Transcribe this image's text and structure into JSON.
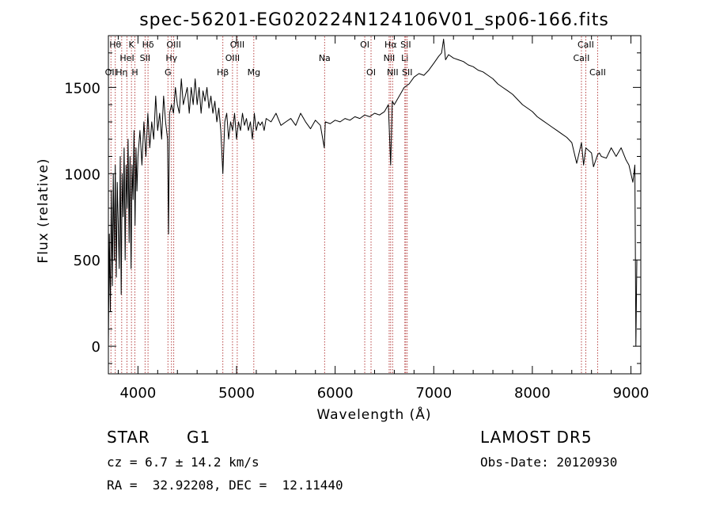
{
  "chart_data": {
    "type": "line",
    "title": "spec-56201-EG020224N124106V01_sp06-166.fits",
    "xlabel": "Wavelength (Å)",
    "ylabel": "Flux (relative)",
    "xlim": [
      3700,
      9100
    ],
    "ylim": [
      -160,
      1800
    ],
    "xticks": [
      4000,
      5000,
      6000,
      7000,
      8000,
      9000
    ],
    "yticks": [
      0,
      500,
      1000,
      1500
    ],
    "grid": false,
    "series": [
      {
        "x": [
          3700,
          3710,
          3720,
          3730,
          3740,
          3750,
          3760,
          3770,
          3780,
          3790,
          3800,
          3810,
          3820,
          3830,
          3840,
          3850,
          3860,
          3870,
          3880,
          3890,
          3900,
          3910,
          3920,
          3930,
          3940,
          3950,
          3960,
          3970,
          3980,
          3990,
          4000,
          4020,
          4040,
          4060,
          4080,
          4100,
          4120,
          4140,
          4160,
          4180,
          4200,
          4220,
          4240,
          4260,
          4280,
          4300,
          4310,
          4320,
          4340,
          4360,
          4380,
          4400,
          4420,
          4440,
          4460,
          4480,
          4500,
          4520,
          4540,
          4560,
          4580,
          4600,
          4620,
          4640,
          4660,
          4680,
          4700,
          4720,
          4740,
          4760,
          4780,
          4800,
          4820,
          4840,
          4861,
          4880,
          4900,
          4920,
          4940,
          4960,
          4980,
          5000,
          5020,
          5040,
          5060,
          5080,
          5100,
          5120,
          5140,
          5160,
          5180,
          5200,
          5220,
          5240,
          5260,
          5280,
          5300,
          5350,
          5400,
          5450,
          5500,
          5550,
          5600,
          5650,
          5700,
          5750,
          5800,
          5850,
          5890,
          5900,
          5950,
          6000,
          6050,
          6100,
          6150,
          6200,
          6250,
          6300,
          6350,
          6400,
          6450,
          6500,
          6540,
          6563,
          6580,
          6600,
          6650,
          6700,
          6750,
          6800,
          6850,
          6900,
          6950,
          7000,
          7050,
          7080,
          7100,
          7120,
          7150,
          7200,
          7250,
          7300,
          7350,
          7400,
          7450,
          7500,
          7550,
          7600,
          7650,
          7700,
          7750,
          7800,
          7850,
          7900,
          7950,
          8000,
          8050,
          8100,
          8150,
          8200,
          8250,
          8300,
          8350,
          8400,
          8450,
          8498,
          8520,
          8542,
          8560,
          8580,
          8600,
          8620,
          8662,
          8680,
          8700,
          8750,
          8800,
          8850,
          8900,
          8950,
          8980,
          9000,
          9020,
          9040,
          9050,
          9060
        ],
        "y": [
          0,
          650,
          200,
          900,
          350,
          1000,
          500,
          1050,
          400,
          950,
          700,
          450,
          1100,
          300,
          1000,
          750,
          1150,
          500,
          1050,
          800,
          1200,
          600,
          1100,
          450,
          1050,
          850,
          1250,
          700,
          1150,
          900,
          1100,
          1250,
          1050,
          1300,
          1100,
          1350,
          1150,
          1300,
          1200,
          1450,
          1250,
          1350,
          1200,
          1450,
          1300,
          1200,
          650,
          1350,
          1400,
          1350,
          1500,
          1400,
          1350,
          1550,
          1400,
          1450,
          1500,
          1350,
          1500,
          1400,
          1550,
          1400,
          1500,
          1350,
          1480,
          1420,
          1500,
          1380,
          1450,
          1350,
          1420,
          1300,
          1380,
          1250,
          1000,
          1300,
          1350,
          1200,
          1300,
          1250,
          1350,
          1200,
          1300,
          1250,
          1350,
          1280,
          1320,
          1250,
          1300,
          1200,
          1350,
          1250,
          1300,
          1280,
          1300,
          1250,
          1320,
          1300,
          1350,
          1280,
          1300,
          1320,
          1280,
          1350,
          1300,
          1260,
          1310,
          1280,
          1150,
          1300,
          1290,
          1310,
          1300,
          1320,
          1310,
          1330,
          1320,
          1340,
          1330,
          1350,
          1340,
          1360,
          1400,
          1050,
          1420,
          1400,
          1450,
          1500,
          1520,
          1560,
          1580,
          1570,
          1600,
          1640,
          1680,
          1700,
          1780,
          1660,
          1690,
          1670,
          1660,
          1650,
          1630,
          1620,
          1600,
          1590,
          1570,
          1550,
          1520,
          1500,
          1480,
          1460,
          1430,
          1400,
          1380,
          1360,
          1330,
          1310,
          1290,
          1270,
          1250,
          1230,
          1210,
          1180,
          1060,
          1180,
          1050,
          1150,
          1140,
          1130,
          1120,
          1040,
          1110,
          1120,
          1100,
          1090,
          1150,
          1100,
          1150,
          1080,
          1050,
          1000,
          950,
          1050,
          0,
          500
        ]
      }
    ],
    "lines": [
      {
        "wave": 3726,
        "label": "OII",
        "row": 2
      },
      {
        "wave": 3770,
        "label": "Hθ",
        "row": 0
      },
      {
        "wave": 3835,
        "label": "Hη",
        "row": 2
      },
      {
        "wave": 3889,
        "label": "HeI",
        "row": 1
      },
      {
        "wave": 3934,
        "label": "K",
        "row": 0
      },
      {
        "wave": 3969,
        "label": "H",
        "row": 2
      },
      {
        "wave": 4072,
        "label": "SII",
        "row": 1
      },
      {
        "wave": 4102,
        "label": "Hδ",
        "row": 0
      },
      {
        "wave": 4304,
        "label": "G",
        "row": 2
      },
      {
        "wave": 4340,
        "label": "Hγ",
        "row": 1
      },
      {
        "wave": 4363,
        "label": "OIII",
        "row": 0
      },
      {
        "wave": 4861,
        "label": "Hβ",
        "row": 2
      },
      {
        "wave": 4959,
        "label": "OIII",
        "row": 1
      },
      {
        "wave": 5007,
        "label": "OIII",
        "row": 0
      },
      {
        "wave": 5175,
        "label": "Mg",
        "row": 2
      },
      {
        "wave": 5893,
        "label": "Na",
        "row": 1
      },
      {
        "wave": 6300,
        "label": "OI",
        "row": 0
      },
      {
        "wave": 6364,
        "label": "OI",
        "row": 2
      },
      {
        "wave": 6548,
        "label": "NII",
        "row": 1
      },
      {
        "wave": 6563,
        "label": "Hα",
        "row": 0
      },
      {
        "wave": 6583,
        "label": "NII",
        "row": 2
      },
      {
        "wave": 6707,
        "label": "Li",
        "row": 1
      },
      {
        "wave": 6716,
        "label": "SII",
        "row": 0
      },
      {
        "wave": 6731,
        "label": "SII",
        "row": 2
      },
      {
        "wave": 8498,
        "label": "CaII",
        "row": 1
      },
      {
        "wave": 8542,
        "label": "CaII",
        "row": 0
      },
      {
        "wave": 8662,
        "label": "CaII",
        "row": 2
      }
    ]
  },
  "footer": {
    "object_type": "STAR",
    "subclass": "G1",
    "redshift": "cz = 6.7 ± 14.2 km/s",
    "coords": "RA =  32.92208, DEC =  12.11440",
    "survey": "LAMOST DR5",
    "obs_date": "Obs-Date: 20120930"
  }
}
